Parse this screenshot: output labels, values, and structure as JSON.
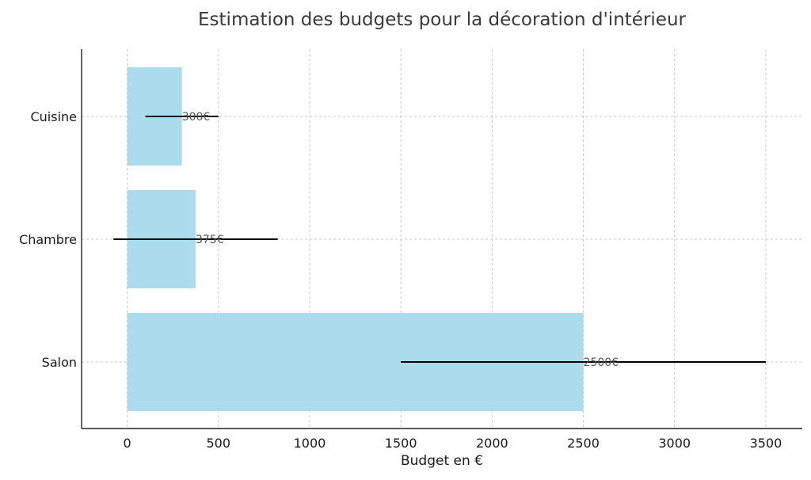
{
  "chart_data": {
    "type": "bar",
    "orientation": "horizontal",
    "title": "Estimation des budgets pour la décoration d'intérieur",
    "xlabel": "Budget en €",
    "ylabel": "",
    "categories": [
      "Salon",
      "Chambre",
      "Cuisine"
    ],
    "values": [
      2500,
      375,
      300
    ],
    "errors": [
      1000,
      450,
      200
    ],
    "value_labels": [
      "2500€",
      "375€",
      "300€"
    ],
    "xlim": [
      -250,
      3700
    ],
    "xticks": [
      0,
      500,
      1000,
      1500,
      2000,
      2500,
      3000,
      3500
    ],
    "grid": true,
    "bar_color": "#aadcee",
    "error_color": "#000000"
  }
}
